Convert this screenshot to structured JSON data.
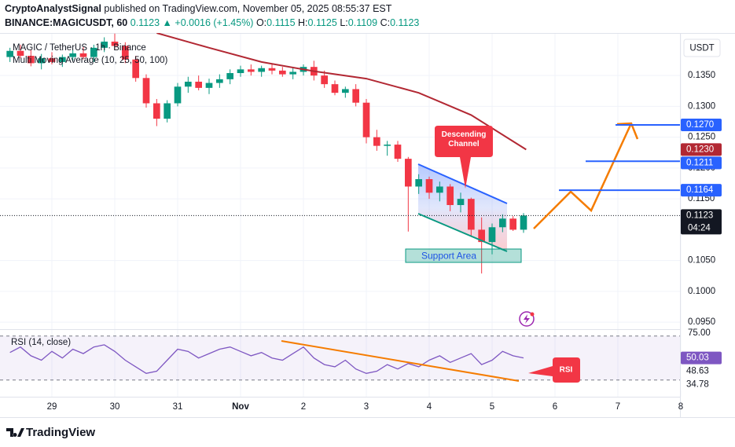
{
  "header": {
    "author": "CryptoAnalystSignal",
    "published": "published on TradingView.com, November 05, 2025 08:55:37 EST",
    "symbol": "BINANCE:MAGICUSDT, 60",
    "price": "0.1123",
    "change": "▲ +0.0016 (+1.45%)",
    "ohlc": [
      {
        "label": "O:",
        "value": "0.1115"
      },
      {
        "label": "H:",
        "value": "0.1125"
      },
      {
        "label": "L:",
        "value": "0.1109"
      },
      {
        "label": "C:",
        "value": "0.1123"
      }
    ]
  },
  "footer": {
    "brand": "TradingView"
  },
  "chart_data": [
    {
      "type": "candlestick",
      "title": "MAGIC / TetherUS · 1h · Binance",
      "up_color": "#089981",
      "down_color": "#f23645",
      "x": [
        -16,
        -12,
        -8,
        -4,
        0,
        4,
        8,
        12,
        16,
        20,
        24,
        28,
        32,
        36,
        40,
        44,
        48,
        52,
        56,
        60,
        64,
        68,
        72,
        76,
        80,
        84,
        88,
        92,
        96,
        100,
        104,
        108,
        112,
        116,
        120,
        124,
        128,
        132,
        136,
        140,
        144,
        148,
        152,
        156,
        160,
        164,
        168,
        172,
        176,
        180
      ],
      "open": [
        0.138,
        0.139,
        0.1382,
        0.137,
        0.1378,
        0.1372,
        0.138,
        0.1386,
        0.138,
        0.1395,
        0.1405,
        0.1398,
        0.1376,
        0.1346,
        0.1305,
        0.128,
        0.1305,
        0.1332,
        0.134,
        0.133,
        0.1338,
        0.1344,
        0.1354,
        0.136,
        0.1356,
        0.1362,
        0.1358,
        0.1352,
        0.1356,
        0.1364,
        0.135,
        0.1336,
        0.1322,
        0.1328,
        0.1306,
        0.125,
        0.1236,
        0.1238,
        0.1215,
        0.117,
        0.1182,
        0.116,
        0.117,
        0.114,
        0.115,
        0.11,
        0.108,
        0.1104,
        0.1118,
        0.11
      ],
      "high": [
        0.1395,
        0.14,
        0.1392,
        0.1385,
        0.1388,
        0.1384,
        0.1392,
        0.1396,
        0.14,
        0.1412,
        0.1418,
        0.1404,
        0.1382,
        0.1352,
        0.1312,
        0.131,
        0.1338,
        0.1348,
        0.135,
        0.1345,
        0.1352,
        0.136,
        0.1366,
        0.1368,
        0.1366,
        0.137,
        0.1364,
        0.1362,
        0.1368,
        0.1374,
        0.1358,
        0.1342,
        0.1332,
        0.1336,
        0.1312,
        0.1262,
        0.1244,
        0.1244,
        0.1218,
        0.119,
        0.1186,
        0.1178,
        0.1174,
        0.116,
        0.1152,
        0.112,
        0.111,
        0.1125,
        0.1122,
        0.1127
      ],
      "low": [
        0.1372,
        0.1378,
        0.1365,
        0.136,
        0.1368,
        0.1364,
        0.1374,
        0.1376,
        0.1372,
        0.1388,
        0.1392,
        0.137,
        0.134,
        0.1298,
        0.1268,
        0.1274,
        0.13,
        0.1322,
        0.1326,
        0.132,
        0.133,
        0.1336,
        0.1348,
        0.135,
        0.1348,
        0.1352,
        0.1348,
        0.1344,
        0.135,
        0.1342,
        0.133,
        0.1318,
        0.1314,
        0.13,
        0.124,
        0.1228,
        0.122,
        0.121,
        0.1097,
        0.1158,
        0.115,
        0.1146,
        0.113,
        0.1128,
        0.109,
        0.1029,
        0.106,
        0.1096,
        0.1098,
        0.1095
      ],
      "close": [
        0.139,
        0.1382,
        0.137,
        0.1378,
        0.1372,
        0.138,
        0.1386,
        0.138,
        0.1395,
        0.1405,
        0.1398,
        0.1376,
        0.1346,
        0.1305,
        0.128,
        0.1305,
        0.1332,
        0.134,
        0.133,
        0.1338,
        0.1344,
        0.1354,
        0.136,
        0.1356,
        0.1362,
        0.1358,
        0.1352,
        0.1356,
        0.1364,
        0.135,
        0.1336,
        0.1322,
        0.1328,
        0.1306,
        0.125,
        0.1236,
        0.1238,
        0.1215,
        0.117,
        0.1182,
        0.116,
        0.117,
        0.114,
        0.115,
        0.11,
        0.108,
        0.1104,
        0.1118,
        0.11,
        0.1123
      ],
      "series": [
        {
          "name": "Multi Moving Average (10, 25, 50, 100)",
          "color": "#b22833",
          "x": [
            40,
            60,
            80,
            100,
            120,
            140,
            160,
            181
          ],
          "values": [
            0.1419,
            0.1395,
            0.1372,
            0.1357,
            0.1345,
            0.1322,
            0.1286,
            0.123
          ]
        }
      ],
      "xlim": [
        -19.8,
        239.7
      ],
      "xticks": [
        {
          "value": 0,
          "label": "29"
        },
        {
          "value": 24,
          "label": "30"
        },
        {
          "value": 48,
          "label": "31"
        },
        {
          "value": 72,
          "label": "Nov"
        },
        {
          "value": 96,
          "label": "2"
        },
        {
          "value": 120,
          "label": "3"
        },
        {
          "value": 144,
          "label": "4"
        },
        {
          "value": 168,
          "label": "5"
        },
        {
          "value": 192,
          "label": "6"
        },
        {
          "value": 216,
          "label": "7"
        },
        {
          "value": 240,
          "label": "8"
        }
      ],
      "ylim": [
        0.094,
        0.1419
      ],
      "yticks": [
        {
          "value": 0.135,
          "label": "0.1350"
        },
        {
          "value": 0.13,
          "label": "0.1300"
        },
        {
          "value": 0.125,
          "label": "0.1250"
        },
        {
          "value": 0.12,
          "label": "0.1200"
        },
        {
          "value": 0.115,
          "label": "0.1150"
        },
        {
          "value": 0.105,
          "label": "0.1050"
        },
        {
          "value": 0.1,
          "label": "0.1000"
        },
        {
          "value": 0.095,
          "label": "0.0950"
        }
      ],
      "grid": true,
      "currency": "USDT",
      "levels": [
        {
          "value": 0.127,
          "label": "0.1270",
          "color": "#2962ff"
        },
        {
          "value": 0.123,
          "label": "0.1230",
          "color": "#b22833"
        },
        {
          "value": 0.1211,
          "label": "0.1211",
          "color": "#2962ff"
        },
        {
          "value": 0.1164,
          "label": "0.1164",
          "color": "#2962ff"
        },
        {
          "value": 0.1123,
          "label": "0.1123",
          "color": "#131722",
          "countdown": "04:24"
        }
      ],
      "annotations": [
        "Descending Channel",
        "Support Area"
      ]
    },
    {
      "type": "line",
      "title": "RSI (14, close)",
      "color": "#7e57c2",
      "x": [
        -16,
        -12,
        -8,
        -4,
        0,
        4,
        8,
        12,
        16,
        20,
        24,
        28,
        32,
        36,
        40,
        44,
        48,
        52,
        56,
        60,
        64,
        68,
        72,
        76,
        80,
        84,
        88,
        92,
        96,
        100,
        104,
        108,
        112,
        116,
        120,
        124,
        128,
        132,
        136,
        140,
        144,
        148,
        152,
        156,
        160,
        164,
        168,
        172,
        176,
        180
      ],
      "values": [
        55,
        60,
        52,
        48,
        56,
        50,
        58,
        54,
        60,
        62,
        56,
        48,
        42,
        36,
        38,
        48,
        58,
        56,
        50,
        54,
        58,
        60,
        56,
        52,
        55,
        50,
        48,
        54,
        60,
        50,
        44,
        42,
        48,
        40,
        36,
        38,
        44,
        40,
        45,
        42,
        48,
        52,
        46,
        50,
        54,
        44,
        48,
        56,
        52,
        50.03
      ],
      "ylim": [
        14.8,
        75.5
      ],
      "yticks": [
        {
          "value": 75,
          "label": "75.00"
        }
      ],
      "bands": [
        30,
        70
      ],
      "tags": [
        {
          "value": 50.03,
          "label": "50.03",
          "color": "#7e57c2"
        },
        {
          "value": 48.63,
          "label": "48.63",
          "color": "#ffffff"
        },
        {
          "value": 34.78,
          "label": "34.78",
          "color": "#ffffff"
        }
      ],
      "annotation": "RSI"
    }
  ]
}
